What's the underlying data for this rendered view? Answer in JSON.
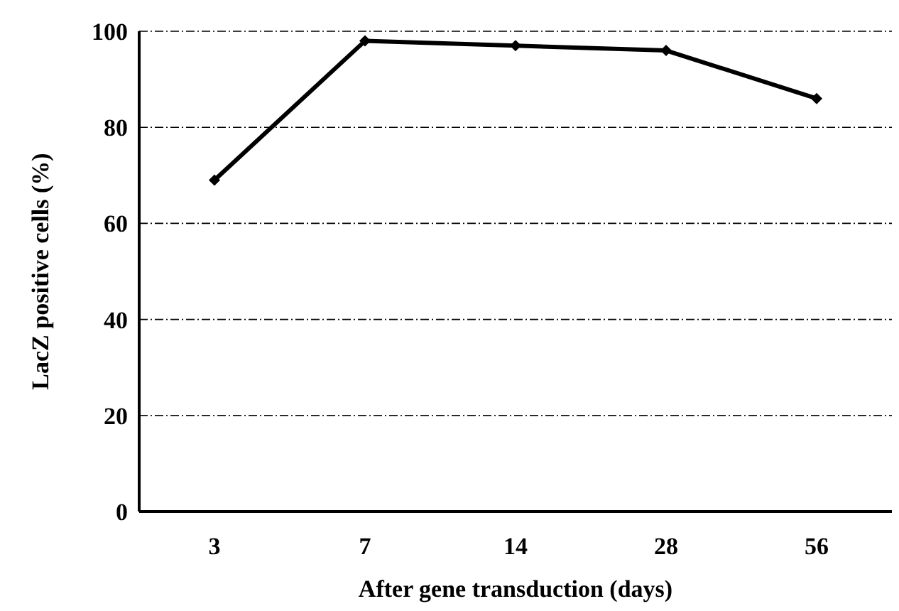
{
  "chart_data": {
    "type": "line",
    "xlabel": "After gene transduction (days)",
    "ylabel": "LacZ positive cells (%)",
    "categories": [
      "3",
      "7",
      "14",
      "28",
      "56"
    ],
    "series": [
      {
        "color": "#000000",
        "values": [
          69,
          98,
          97,
          96,
          86
        ]
      }
    ],
    "ylim": [
      0,
      100
    ],
    "yticks": [
      0,
      20,
      40,
      60,
      80,
      100
    ],
    "grid": "y",
    "marker": "diamond",
    "line_style": "solid",
    "legend": false
  }
}
